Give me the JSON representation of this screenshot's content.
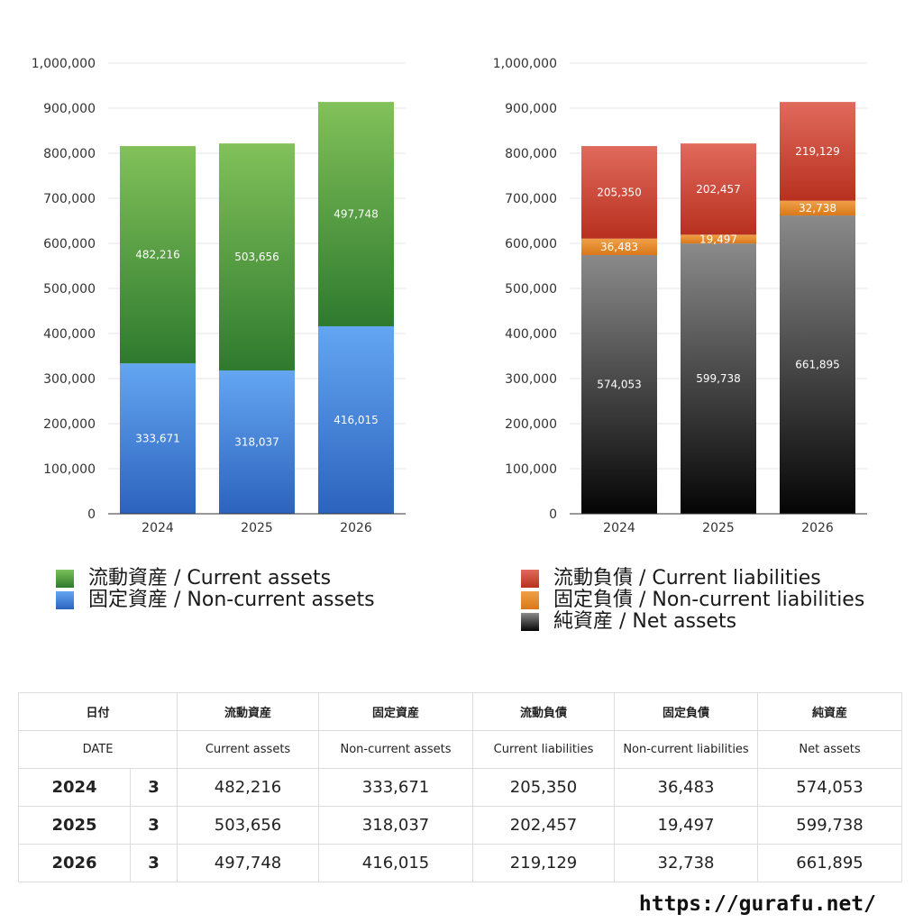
{
  "chart_data": [
    {
      "type": "bar",
      "stacked": true,
      "categories": [
        "2024",
        "2025",
        "2026"
      ],
      "ylim": [
        0,
        1000000
      ],
      "yticks": [
        "0",
        "100,000",
        "200,000",
        "300,000",
        "400,000",
        "500,000",
        "600,000",
        "700,000",
        "800,000",
        "900,000",
        "1,000,000"
      ],
      "series": [
        {
          "name": "固定資産 / Non-current assets",
          "values": [
            333671,
            318037,
            416015
          ],
          "labels": [
            "333,671",
            "318,037",
            "416,015"
          ],
          "color_top": "#64a6f2",
          "color_bottom": "#2c63bd"
        },
        {
          "name": "流動資産 / Current assets",
          "values": [
            482216,
            503656,
            497748
          ],
          "labels": [
            "482,216",
            "503,656",
            "497,748"
          ],
          "color_top": "#82c15a",
          "color_bottom": "#2e7a2e"
        }
      ]
    },
    {
      "type": "bar",
      "stacked": true,
      "categories": [
        "2024",
        "2025",
        "2026"
      ],
      "ylim": [
        0,
        1000000
      ],
      "yticks": [
        "0",
        "100,000",
        "200,000",
        "300,000",
        "400,000",
        "500,000",
        "600,000",
        "700,000",
        "800,000",
        "900,000",
        "1,000,000"
      ],
      "series": [
        {
          "name": "純資産 / Net assets",
          "values": [
            574053,
            599738,
            661895
          ],
          "labels": [
            "574,053",
            "599,738",
            "661,895"
          ],
          "color_top": "#8a8a8a",
          "color_bottom": "#050505"
        },
        {
          "name": "固定負債 / Non-current liabilities",
          "values": [
            36483,
            19497,
            32738
          ],
          "labels": [
            "36,483",
            "19,497",
            "32,738"
          ],
          "color_top": "#f0a048",
          "color_bottom": "#d9781a"
        },
        {
          "name": "流動負債 / Current liabilities",
          "values": [
            205350,
            202457,
            219129
          ],
          "labels": [
            "205,350",
            "202,457",
            "219,129"
          ],
          "color_top": "#e06a5c",
          "color_bottom": "#b8301f"
        }
      ]
    }
  ],
  "legends": {
    "assets": [
      {
        "label": "流動資産 / Current assets",
        "color": "#4f9f3c"
      },
      {
        "label": "固定資産 / Non-current assets",
        "color": "#3f83dc"
      }
    ],
    "liabilities": [
      {
        "label": "流動負債 / Current liabilities",
        "color": "#cc4433"
      },
      {
        "label": "固定負債 / Non-current liabilities",
        "color": "#e8892c"
      },
      {
        "label": "純資産 / Net assets",
        "color": "#2a2a2a"
      }
    ]
  },
  "table": {
    "header_jp": [
      "日付",
      "",
      "流動資産",
      "固定資産",
      "流動負債",
      "固定負債",
      "純資産"
    ],
    "header_en": [
      "DATE",
      "",
      "Current assets",
      "Non-current assets",
      "Current liabilities",
      "Non-current liabilities",
      "Net assets"
    ],
    "rows": [
      [
        "2024",
        "3",
        "482,216",
        "333,671",
        "205,350",
        "36,483",
        "574,053"
      ],
      [
        "2025",
        "3",
        "503,656",
        "318,037",
        "202,457",
        "19,497",
        "599,738"
      ],
      [
        "2026",
        "3",
        "497,748",
        "416,015",
        "219,129",
        "32,738",
        "661,895"
      ]
    ]
  },
  "footer": {
    "url": "https://gurafu.net/"
  }
}
